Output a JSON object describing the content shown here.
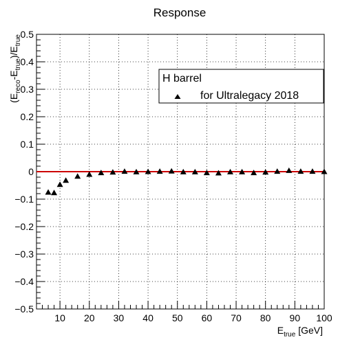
{
  "chart_data": {
    "type": "scatter",
    "title": "Response",
    "xlabel": {
      "main": "E",
      "sub": "true",
      "tail": " [GeV]"
    },
    "ylabel": {
      "p1": "(E",
      "s1": "reco",
      "p2": "-E",
      "s2": "true",
      "p3": ")/E",
      "s3": "true"
    },
    "xlim": [
      2,
      100
    ],
    "ylim": [
      -0.5,
      0.5
    ],
    "x_ticks": [
      10,
      20,
      30,
      40,
      50,
      60,
      70,
      80,
      90,
      100
    ],
    "y_ticks": [
      -0.5,
      -0.4,
      -0.3,
      -0.2,
      -0.1,
      0,
      0.1,
      0.2,
      0.3,
      0.4,
      0.5
    ],
    "x_tick_labels": [
      "10",
      "20",
      "30",
      "40",
      "50",
      "60",
      "70",
      "80",
      "90",
      "100"
    ],
    "y_tick_labels": [
      "−0.5",
      "−0.4",
      "−0.3",
      "−0.2",
      "−0.1",
      "0",
      "0.1",
      "0.2",
      "0.3",
      "0.4",
      "0.5"
    ],
    "grid": true,
    "legend": {
      "placement": "top-right",
      "header": "H barrel",
      "entries": [
        {
          "label": "for Ultralegacy 2018",
          "marker": "triangle"
        }
      ]
    },
    "reference_line": {
      "y": 0,
      "color": "#cc0000"
    },
    "series": [
      {
        "name": "for Ultralegacy 2018",
        "marker": "triangle",
        "color": "#000000",
        "points": [
          {
            "x": 6,
            "y": -0.075
          },
          {
            "x": 8,
            "y": -0.077
          },
          {
            "x": 10,
            "y": -0.047
          },
          {
            "x": 12,
            "y": -0.032
          },
          {
            "x": 16,
            "y": -0.017
          },
          {
            "x": 20,
            "y": -0.01
          },
          {
            "x": 24,
            "y": -0.004
          },
          {
            "x": 28,
            "y": -0.002
          },
          {
            "x": 32,
            "y": 0.001
          },
          {
            "x": 36,
            "y": -0.001
          },
          {
            "x": 40,
            "y": 0.0
          },
          {
            "x": 44,
            "y": 0.001
          },
          {
            "x": 48,
            "y": 0.002
          },
          {
            "x": 52,
            "y": -0.001
          },
          {
            "x": 56,
            "y": -0.001
          },
          {
            "x": 60,
            "y": -0.004
          },
          {
            "x": 64,
            "y": -0.005
          },
          {
            "x": 68,
            "y": -0.001
          },
          {
            "x": 72,
            "y": -0.001
          },
          {
            "x": 76,
            "y": -0.004
          },
          {
            "x": 80,
            "y": -0.002
          },
          {
            "x": 84,
            "y": 0.001
          },
          {
            "x": 88,
            "y": 0.004
          },
          {
            "x": 92,
            "y": 0.001
          },
          {
            "x": 96,
            "y": 0.001
          },
          {
            "x": 100,
            "y": 0.0
          }
        ]
      }
    ]
  }
}
